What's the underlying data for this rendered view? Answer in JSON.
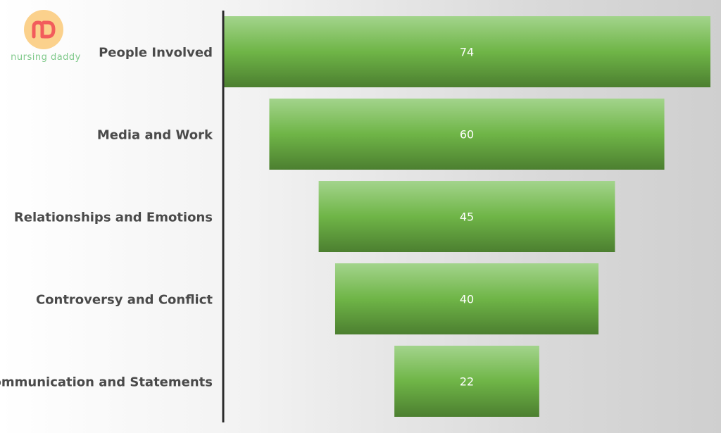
{
  "logo": {
    "text": "nursing daddy",
    "mark": "nD",
    "colors": {
      "circle": "#fbd18c",
      "mark": "#f25c5c",
      "text": "#7fc98a"
    }
  },
  "chart_data": {
    "type": "bar",
    "orientation": "horizontal-centered",
    "categories": [
      "People Involved",
      "Media and Work",
      "Relationships and Emotions",
      "Controversy and Conflict",
      "Communication and Statements"
    ],
    "values": [
      74,
      60,
      45,
      40,
      22
    ],
    "data_labels": [
      "74",
      "60",
      "45",
      "40",
      "22"
    ],
    "colors": {
      "bar_top": "#a3d48c",
      "bar_mid": "#6fb547",
      "bar_bottom": "#4c7f30",
      "axis": "#2b2b2b"
    },
    "title": "",
    "xlabel": "",
    "ylabel": "",
    "grid": false,
    "legend": "none"
  }
}
